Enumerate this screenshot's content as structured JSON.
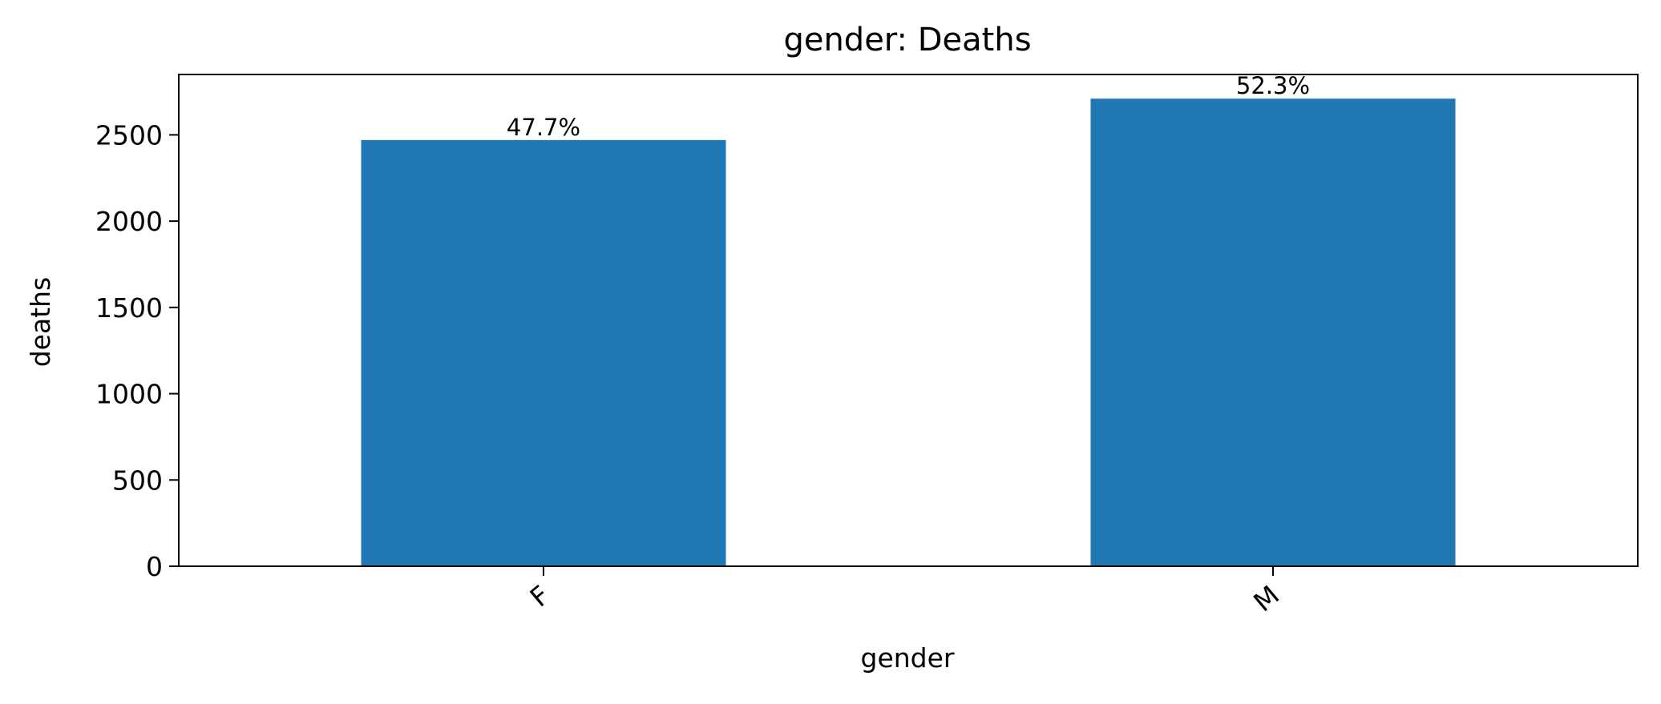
{
  "chart_data": {
    "type": "bar",
    "title": "gender: Deaths",
    "xlabel": "gender",
    "ylabel": "deaths",
    "categories": [
      "F",
      "M"
    ],
    "values": [
      2470,
      2710
    ],
    "data_labels": [
      "47.7%",
      "52.3%"
    ],
    "ylim": [
      0,
      2850
    ],
    "yticks": [
      0,
      500,
      1000,
      1500,
      2000,
      2500
    ],
    "grid": false,
    "legend": "none",
    "bar_color": "#1f77b4"
  }
}
